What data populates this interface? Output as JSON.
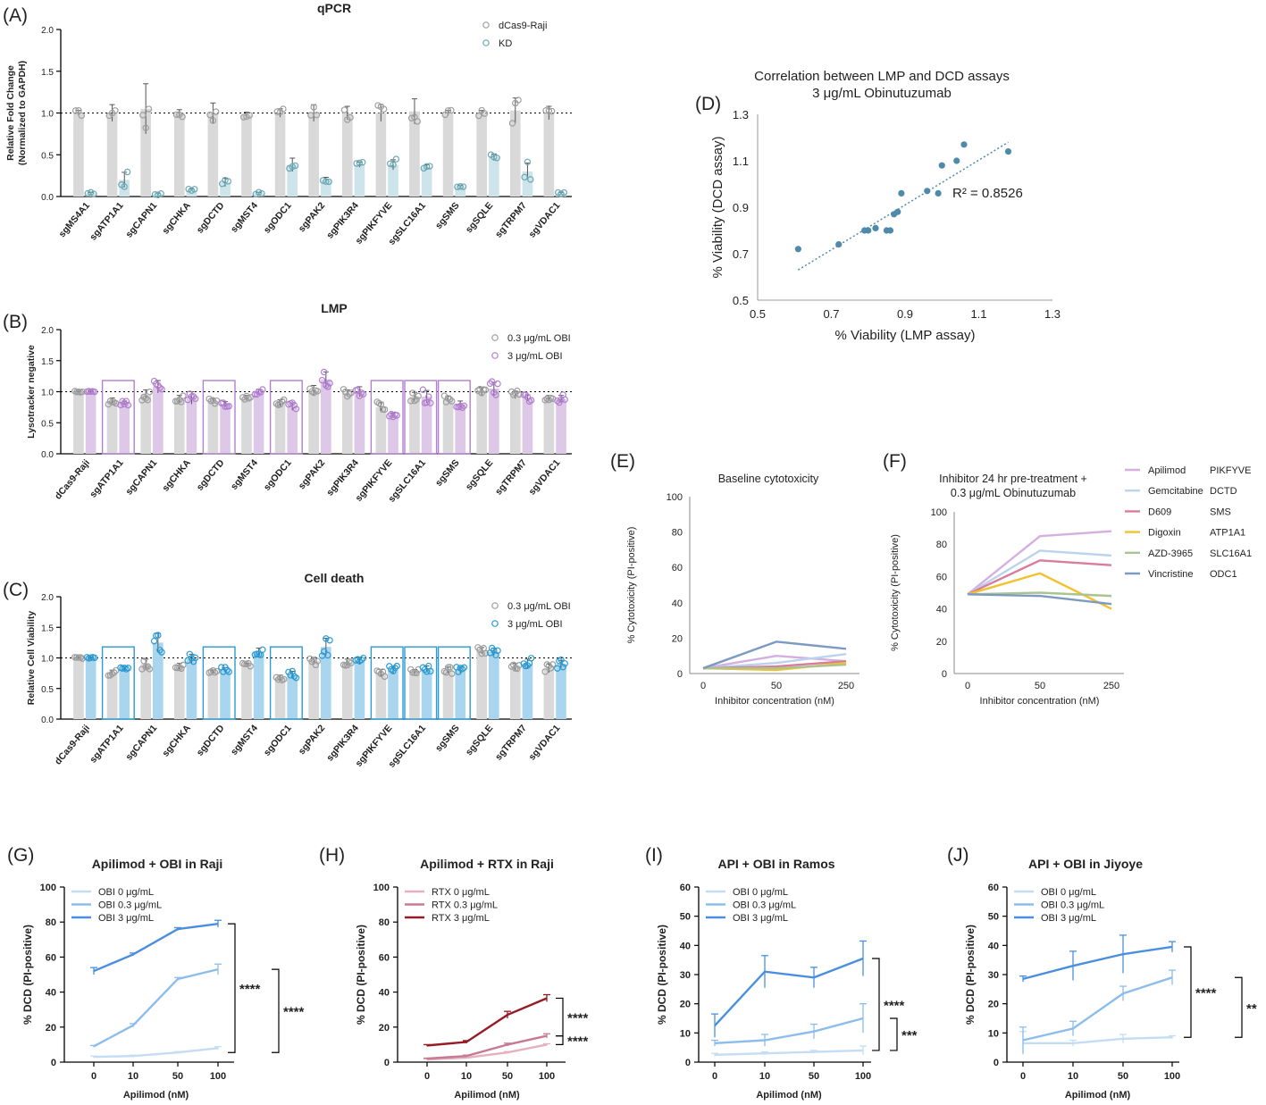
{
  "colors": {
    "gray": "#9e9e9e",
    "gray_bar": "#d9d9d9",
    "teal": "#6aa7b3",
    "teal_bar": "#cde4ea",
    "purple": "#b27fcf",
    "purple_bar": "#ddc8e8",
    "blue": "#2a9bd4",
    "blue_bar": "#a9d6ee",
    "boxA": "#b27fcf",
    "boxB": "#2a9bd4",
    "dot": "#4f8aa8",
    "obi0": "#c4dcf4",
    "obi03": "#8cbdec",
    "obi3": "#4a8fdf",
    "rtx0": "#e4b2bf",
    "rtx03": "#c87893",
    "rtx3": "#951b26"
  },
  "chart_data": [
    {
      "id": "A",
      "panel_label": "(A)",
      "type": "bar",
      "title": "qPCR",
      "ylabel": "Relative Fold Change (Normalized to GAPDH)",
      "ylabel_lines": [
        "Relative Fold Change",
        "(Normalized to GAPDH)"
      ],
      "ylim": [
        0,
        2.0
      ],
      "yticks": [
        "0.0",
        "0.5",
        "1.0",
        "1.5",
        "2.0"
      ],
      "reference_line": 1.0,
      "categories": [
        "sgMS4A1",
        "sgATP1A1",
        "sgCAPN1",
        "sgCHKA",
        "sgDCTD",
        "sgMST4",
        "sgODC1",
        "sgPAK2",
        "sgPIK3R4",
        "sgPIKFYVE",
        "sgSLC16A1",
        "sgSMS",
        "sgSQLE",
        "sgTRPM7",
        "sgVDAC1"
      ],
      "legend_position": "top-right",
      "series": [
        {
          "name": "dCas9-Raji",
          "values": [
            1.0,
            1.0,
            1.05,
            1.0,
            1.0,
            0.98,
            1.0,
            1.0,
            1.0,
            1.0,
            1.02,
            1.0,
            1.0,
            1.03,
            1.0
          ],
          "errors": [
            0.03,
            0.1,
            0.3,
            0.04,
            0.12,
            0.03,
            0.05,
            0.1,
            0.08,
            0.1,
            0.15,
            0.03,
            0.03,
            0.15,
            0.08
          ]
        },
        {
          "name": "KD",
          "values": [
            0.04,
            0.2,
            0.03,
            0.08,
            0.17,
            0.04,
            0.38,
            0.2,
            0.38,
            0.38,
            0.35,
            0.12,
            0.47,
            0.3,
            0.04
          ],
          "errors": [
            0.01,
            0.09,
            0.01,
            0.01,
            0.05,
            0.01,
            0.08,
            0.03,
            0.03,
            0.06,
            0.03,
            0.01,
            0.04,
            0.1,
            0.01
          ]
        }
      ]
    },
    {
      "id": "B",
      "panel_label": "(B)",
      "type": "bar",
      "title": "LMP",
      "ylabel": "Lysotracker negative",
      "ylabel_lines": [
        "Lysotracker negative"
      ],
      "ylim": [
        0,
        2.0
      ],
      "yticks": [
        "0.0",
        "0.5",
        "1.0",
        "1.5",
        "2.0"
      ],
      "reference_line": 1.0,
      "categories": [
        "dCas9-Raji",
        "sgATP1A1",
        "sgCAPN1",
        "sgCHKA",
        "sgDCTD",
        "sgMST4",
        "sgODC1",
        "sgPAK2",
        "sgPIK3R4",
        "sgPIKFYVE",
        "sgSLC16A1",
        "sgSMS",
        "sgSQLE",
        "sgTRPM7",
        "sgVDAC1"
      ],
      "highlighted": [
        "sgATP1A1",
        "sgDCTD",
        "sgODC1",
        "sgPIKFYVE",
        "sgSLC16A1",
        "sgSMS"
      ],
      "legend_position": "top-right",
      "series": [
        {
          "name": "0.3 μg/mL OBI",
          "values": [
            1.0,
            0.85,
            0.95,
            0.88,
            0.85,
            0.9,
            0.82,
            1.02,
            0.98,
            0.75,
            0.92,
            0.88,
            1.0,
            0.95,
            0.9
          ],
          "errors": [
            0.01,
            0.05,
            0.08,
            0.06,
            0.04,
            0.04,
            0.05,
            0.08,
            0.05,
            0.08,
            0.07,
            0.05,
            0.07,
            0.06,
            0.04
          ]
        },
        {
          "name": "3 μg/mL OBI",
          "values": [
            1.0,
            0.82,
            1.08,
            0.9,
            0.8,
            1.0,
            0.76,
            1.2,
            1.0,
            0.62,
            0.92,
            0.8,
            1.05,
            0.9,
            0.88
          ],
          "errors": [
            0.01,
            0.03,
            0.1,
            0.1,
            0.04,
            0.04,
            0.06,
            0.12,
            0.08,
            0.04,
            0.1,
            0.05,
            0.1,
            0.05,
            0.06
          ]
        }
      ]
    },
    {
      "id": "C",
      "panel_label": "(C)",
      "type": "bar",
      "title": "Cell death",
      "ylabel": "Relative Cell Viability",
      "ylabel_lines": [
        "Relative  Cell Viability"
      ],
      "ylim": [
        0,
        2.0
      ],
      "yticks": [
        "0.0",
        "0.5",
        "1.0",
        "1.5",
        "2.0"
      ],
      "reference_line": 1.0,
      "categories": [
        "dCas9-Raji",
        "sgATP1A1",
        "sgCAPN1",
        "sgCHKA",
        "sgDCTD",
        "sgMST4",
        "sgODC1",
        "sgPAK2",
        "sgPIK3R4",
        "sgPIKFYVE",
        "sgSLC16A1",
        "sgSMS",
        "sgSQLE",
        "sgTRPM7",
        "sgVDAC1"
      ],
      "highlighted": [
        "sgATP1A1",
        "sgDCTD",
        "sgODC1",
        "sgPIKFYVE",
        "sgSLC16A1",
        "sgSMS"
      ],
      "legend_position": "top-right",
      "series": [
        {
          "name": "0.3 μg/mL OBI",
          "values": [
            1.0,
            0.76,
            0.9,
            0.85,
            0.77,
            0.88,
            0.68,
            0.95,
            0.93,
            0.75,
            0.78,
            0.8,
            1.12,
            0.85,
            0.83
          ],
          "errors": [
            0.01,
            0.04,
            0.08,
            0.06,
            0.03,
            0.03,
            0.04,
            0.06,
            0.05,
            0.06,
            0.03,
            0.05,
            0.05,
            0.06,
            0.07
          ]
        },
        {
          "name": "3 μg/mL OBI",
          "values": [
            1.0,
            0.82,
            1.25,
            0.98,
            0.8,
            1.08,
            0.72,
            1.18,
            0.95,
            0.8,
            0.82,
            0.8,
            1.1,
            0.9,
            0.9
          ],
          "errors": [
            0.01,
            0.03,
            0.15,
            0.08,
            0.04,
            0.08,
            0.06,
            0.14,
            0.06,
            0.06,
            0.05,
            0.05,
            0.06,
            0.08,
            0.06
          ]
        }
      ]
    },
    {
      "id": "D",
      "panel_label": "(D)",
      "type": "scatter",
      "title": "Correlation between LMP and DCD assays",
      "subtitle": "3 μg/mL Obinutuzumab",
      "xlabel": "% Viability (LMP assay)",
      "ylabel": "% Viability (DCD assay)",
      "xlim": [
        0.5,
        1.3
      ],
      "ylim": [
        0.5,
        1.3
      ],
      "xticks": [
        "0.5",
        "0.7",
        "0.9",
        "1.1",
        "1.3"
      ],
      "yticks": [
        "0.5",
        "0.7",
        "0.9",
        "1.1",
        "1.3"
      ],
      "annotation": "R² = 0.8526",
      "trendline": {
        "x": [
          0.61,
          1.18
        ],
        "y": [
          0.63,
          1.18
        ]
      },
      "x": [
        0.61,
        0.72,
        0.79,
        0.8,
        0.82,
        0.85,
        0.86,
        0.87,
        0.88,
        0.89,
        0.96,
        0.99,
        1.0,
        1.04,
        1.06,
        1.18
      ],
      "y": [
        0.72,
        0.74,
        0.8,
        0.8,
        0.81,
        0.8,
        0.8,
        0.87,
        0.88,
        0.96,
        0.97,
        0.96,
        1.08,
        1.1,
        1.17,
        1.14
      ]
    },
    {
      "id": "E",
      "panel_label": "(E)",
      "type": "line",
      "title": "Baseline cytotoxicity",
      "xlabel": "Inhibitor concentration (nM)",
      "ylabel": "% Cytotoxicity (PI-positive)",
      "x": [
        "0",
        "50",
        "250"
      ],
      "ylim": [
        0,
        100
      ],
      "yticks": [
        "0",
        "20",
        "40",
        "60",
        "80",
        "100"
      ],
      "series": [
        {
          "name": "Apilimod",
          "color": "#d3b0e0",
          "values": [
            3,
            10,
            7
          ]
        },
        {
          "name": "Gemcitabine",
          "color": "#bcd3ee",
          "values": [
            3,
            6,
            11
          ]
        },
        {
          "name": "D609",
          "color": "#d97b9a",
          "values": [
            3,
            4,
            7
          ]
        },
        {
          "name": "Digoxin",
          "color": "#f2c12e",
          "values": [
            3,
            2,
            6
          ]
        },
        {
          "name": "AZD-3965",
          "color": "#a9c491",
          "values": [
            3,
            3,
            5
          ]
        },
        {
          "name": "Vincristine",
          "color": "#7d9ac2",
          "values": [
            3,
            18,
            14
          ]
        }
      ]
    },
    {
      "id": "F",
      "panel_label": "(F)",
      "type": "line",
      "title": "Inhibitor 24 hr pre-treatment +",
      "subtitle": "0.3 μg/mL Obinutuzumab",
      "xlabel": "Inhibitor concentration (nM)",
      "ylabel": "% Cytotoxicity (PI-positive)",
      "x": [
        "0",
        "50",
        "250"
      ],
      "ylim": [
        0,
        100
      ],
      "yticks": [
        "0",
        "20",
        "40",
        "60",
        "80",
        "100"
      ],
      "legend_position": "right",
      "series": [
        {
          "name": "Apilimod",
          "target": "PIKFYVE",
          "color": "#d3b0e0",
          "values": [
            49,
            85,
            88
          ]
        },
        {
          "name": "Gemcitabine",
          "target": "DCTD",
          "color": "#bcd3ee",
          "values": [
            49,
            76,
            73
          ]
        },
        {
          "name": "D609",
          "target": "SMS",
          "color": "#d97b9a",
          "values": [
            49,
            70,
            67
          ]
        },
        {
          "name": "Digoxin",
          "target": "ATP1A1",
          "color": "#f2c12e",
          "values": [
            49,
            62,
            40
          ]
        },
        {
          "name": "AZD-3965",
          "target": "SLC16A1",
          "color": "#a9c491",
          "values": [
            49,
            50,
            48
          ]
        },
        {
          "name": "Vincristine",
          "target": "ODC1",
          "color": "#7d9ac2",
          "values": [
            49,
            48,
            43
          ]
        }
      ]
    },
    {
      "id": "G",
      "panel_label": "(G)",
      "type": "line",
      "title": "Apilimod + OBI in Raji",
      "xlabel": "Apilimod (nM)",
      "ylabel": "% DCD (PI-positive)",
      "x": [
        "0",
        "10",
        "50",
        "100"
      ],
      "ylim": [
        0,
        100
      ],
      "yticks": [
        "0",
        "20",
        "40",
        "60",
        "80",
        "100"
      ],
      "legend_position": "top-left",
      "series": [
        {
          "name": "OBI 0 μg/mL",
          "color": "#c4dcf4",
          "values": [
            3,
            3.5,
            5.5,
            8
          ],
          "errors": [
            0.5,
            0.5,
            0.5,
            0.8
          ]
        },
        {
          "name": "OBI 0.3 μg/mL",
          "color": "#8cbdec",
          "values": [
            9,
            21,
            47.5,
            53
          ],
          "errors": [
            0.5,
            1,
            0.8,
            3
          ]
        },
        {
          "name": "OBI 3 μg/mL",
          "color": "#4a8fdf",
          "values": [
            52,
            61.5,
            76,
            79
          ],
          "errors": [
            2,
            0.8,
            0.8,
            2
          ]
        }
      ],
      "significance": [
        {
          "label": "****",
          "from": 79,
          "to": 5.5
        },
        {
          "label": "****",
          "from": 53,
          "to": 5.5
        }
      ]
    },
    {
      "id": "H",
      "panel_label": "(H)",
      "type": "line",
      "title": "Apilimod + RTX in Raji",
      "xlabel": "Apilimod (nM)",
      "ylabel": "% DCD (PI-positive)",
      "x": [
        "0",
        "10",
        "50",
        "100"
      ],
      "ylim": [
        0,
        100
      ],
      "yticks": [
        "0",
        "20",
        "40",
        "60",
        "80",
        "100"
      ],
      "legend_position": "top-left",
      "series": [
        {
          "name": "RTX 0 μg/mL",
          "color": "#e4b2bf",
          "values": [
            1.5,
            2.5,
            5.5,
            10
          ],
          "errors": [
            0.3,
            0.3,
            0.5,
            0.5
          ]
        },
        {
          "name": "RTX 0.3 μg/mL",
          "color": "#c87893",
          "values": [
            2,
            3.5,
            10,
            15
          ],
          "errors": [
            0.3,
            0.5,
            0.8,
            1.2
          ]
        },
        {
          "name": "RTX 3 μg/mL",
          "color": "#951b26",
          "values": [
            9.5,
            11.5,
            27,
            36.5
          ],
          "errors": [
            0.5,
            0.8,
            2,
            2
          ]
        }
      ],
      "significance": [
        {
          "label": "****",
          "from": 36.5,
          "to": 15
        },
        {
          "label": "****",
          "from": 15,
          "to": 10
        }
      ]
    },
    {
      "id": "I",
      "panel_label": "(I)",
      "type": "line",
      "title": "API + OBI in Ramos",
      "xlabel": "Apilimod (nM)",
      "ylabel": "% DCD (PI-positive)",
      "x": [
        "0",
        "10",
        "50",
        "100"
      ],
      "ylim": [
        0,
        60
      ],
      "yticks": [
        "0",
        "10",
        "20",
        "30",
        "40",
        "50",
        "60"
      ],
      "legend_position": "top-left",
      "series": [
        {
          "name": "OBI 0 μg/mL",
          "color": "#c4dcf4",
          "values": [
            2.5,
            3,
            3.5,
            4
          ],
          "errors": [
            0.5,
            0.5,
            0.5,
            1.5
          ]
        },
        {
          "name": "OBI 0.3 μg/mL",
          "color": "#8cbdec",
          "values": [
            6.5,
            7.5,
            10.5,
            15
          ],
          "errors": [
            1,
            2,
            2.5,
            5
          ]
        },
        {
          "name": "OBI 3 μg/mL",
          "color": "#4a8fdf",
          "values": [
            12.5,
            31,
            29,
            35.5
          ],
          "errors": [
            4,
            5.5,
            3.5,
            6
          ]
        }
      ],
      "significance": [
        {
          "label": "****",
          "from": 35.5,
          "to": 4
        },
        {
          "label": "***",
          "from": 15,
          "to": 4
        }
      ]
    },
    {
      "id": "J",
      "panel_label": "(J)",
      "type": "line",
      "title": "API + OBI in Jiyoye",
      "xlabel": "Apilimod (nM)",
      "ylabel": "% DCD (PI-positive)",
      "x": [
        "0",
        "10",
        "50",
        "100"
      ],
      "ylim": [
        0,
        60
      ],
      "yticks": [
        "0",
        "10",
        "20",
        "30",
        "40",
        "50",
        "60"
      ],
      "legend_position": "top-left",
      "series": [
        {
          "name": "OBI 0 μg/mL",
          "color": "#c4dcf4",
          "values": [
            6.5,
            6.5,
            8,
            8.5
          ],
          "errors": [
            4,
            1,
            1.5,
            0.5
          ]
        },
        {
          "name": "OBI 0.3 μg/mL",
          "color": "#8cbdec",
          "values": [
            7.5,
            11.5,
            23.5,
            29
          ],
          "errors": [
            4.5,
            2.5,
            2.5,
            2.5
          ]
        },
        {
          "name": "OBI 3 μg/mL",
          "color": "#4a8fdf",
          "values": [
            28.5,
            33,
            37,
            39.5
          ],
          "errors": [
            1,
            5,
            6.5,
            1.8
          ]
        }
      ],
      "significance": [
        {
          "label": "****",
          "from": 39.5,
          "to": 8.5
        },
        {
          "label": "**",
          "from": 29,
          "to": 8.5
        }
      ]
    }
  ]
}
